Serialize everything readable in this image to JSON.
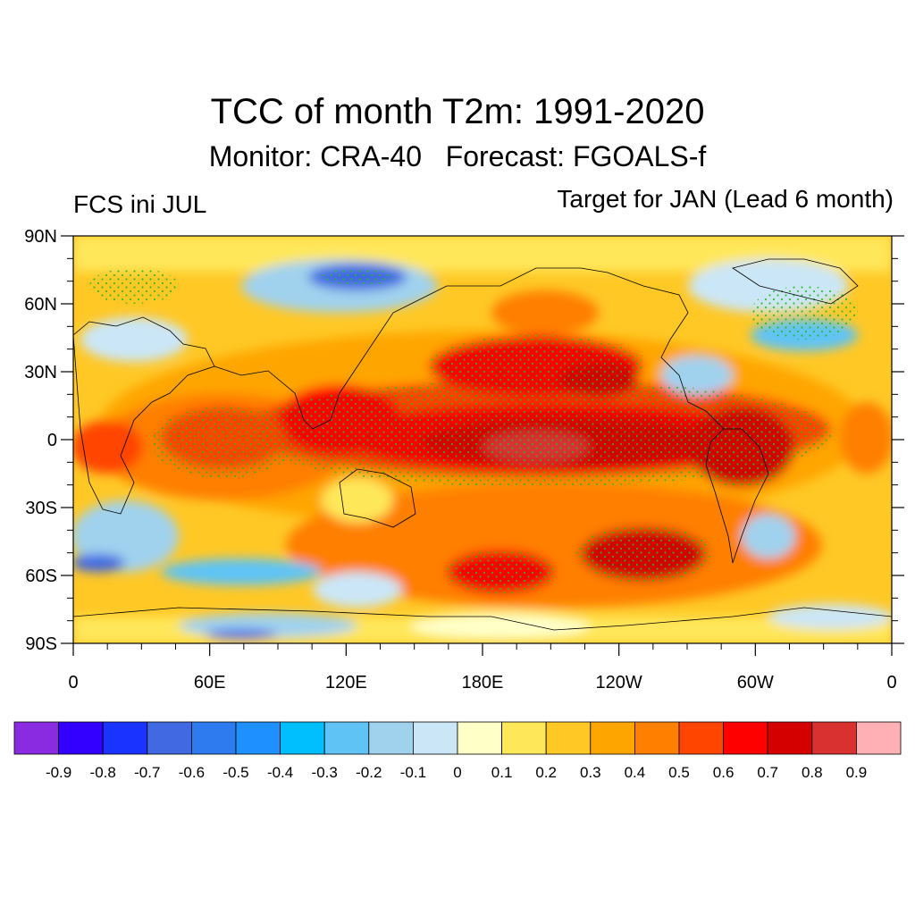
{
  "header": {
    "title": "TCC of month T2m: 1991-2020",
    "subtitle": "Monitor: CRA-40   Forecast: FGOALS-f",
    "left_label": "FCS ini JUL",
    "right_label": "Target for JAN (Lead 6 month)"
  },
  "map": {
    "lat_labels": [
      "90N",
      "60N",
      "30N",
      "0",
      "30S",
      "60S",
      "90S"
    ],
    "lon_labels": [
      "0",
      "60E",
      "120E",
      "180E",
      "120W",
      "60W",
      "0"
    ],
    "significance_stipple_color": "#22bb22",
    "projection": "cylindrical equidistant",
    "lon_range": [
      0,
      360
    ],
    "lat_range": [
      -90,
      90
    ]
  },
  "colorbar": {
    "colors": [
      "#8a2be2",
      "#3300ff",
      "#1a33ff",
      "#4169e1",
      "#2e7bf0",
      "#1e90ff",
      "#00bfff",
      "#5fc4f5",
      "#a0d2ee",
      "#cbe6f7",
      "#ffffc8",
      "#ffe75a",
      "#ffc825",
      "#ffa500",
      "#ff7f00",
      "#ff4500",
      "#ff0000",
      "#d40000",
      "#d93030",
      "#ffb0b4"
    ],
    "labels": [
      "-0.9",
      "-0.8",
      "-0.7",
      "-0.6",
      "-0.5",
      "-0.4",
      "-0.3",
      "-0.2",
      "-0.1",
      "0",
      "0.1",
      "0.2",
      "0.3",
      "0.4",
      "0.5",
      "0.6",
      "0.7",
      "0.8",
      "0.9"
    ]
  }
}
